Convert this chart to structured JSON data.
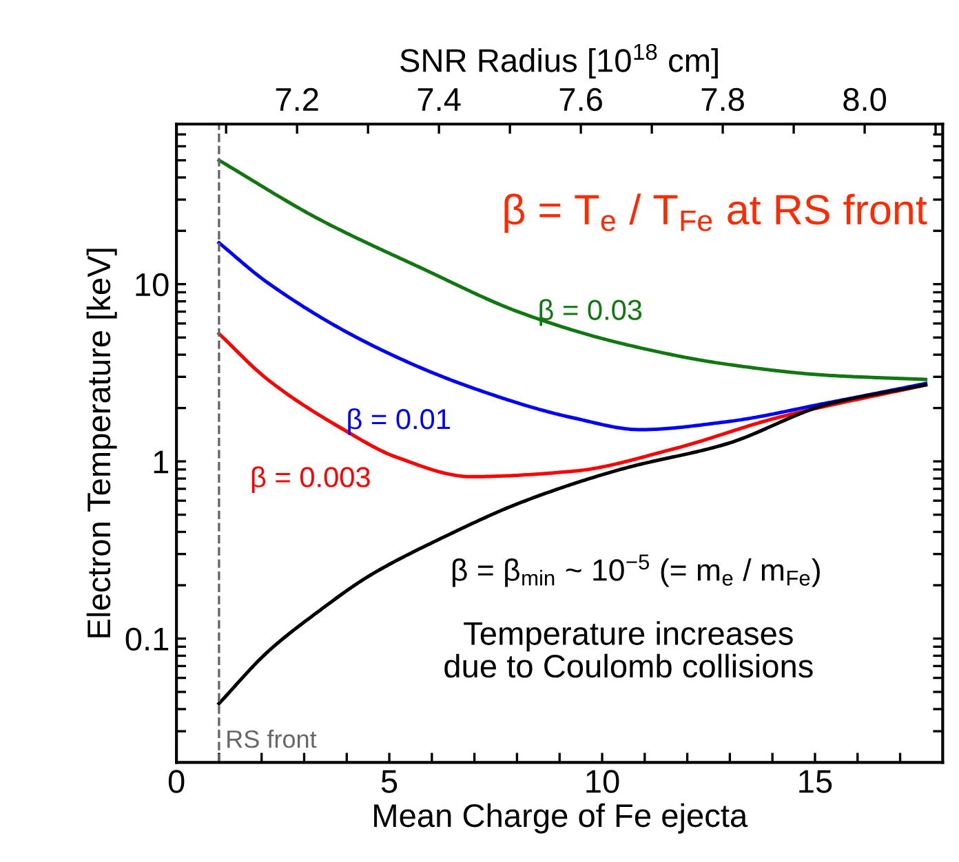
{
  "chart_data": {
    "type": "line",
    "xlabel": "Mean Charge of Fe ejecta",
    "ylabel": "Electron Temperature [keV]",
    "x2label": "SNR Radius [10$^{18}$ cm]",
    "log": "y",
    "xlim": [
      0,
      18
    ],
    "ylim": [
      0.02,
      80
    ],
    "xticks": [
      0,
      {
        "value": 1,
        "label": null
      },
      {
        "value": 2,
        "label": null
      },
      {
        "value": 3,
        "label": null
      },
      {
        "value": 4,
        "label": null
      },
      5,
      {
        "value": 6,
        "label": null
      },
      {
        "value": 7,
        "label": null
      },
      {
        "value": 8,
        "label": null
      },
      {
        "value": 9,
        "label": null
      },
      10,
      {
        "value": 11,
        "label": null
      },
      {
        "value": 12,
        "label": null
      },
      {
        "value": 13,
        "label": null
      },
      {
        "value": 14,
        "label": null
      },
      15,
      {
        "value": 16,
        "label": null
      },
      {
        "value": 17,
        "label": null
      }
    ],
    "yticks": [
      {
        "value": 0.03,
        "label": null
      },
      {
        "value": 0.04,
        "label": null
      },
      {
        "value": 0.05,
        "label": null
      },
      {
        "value": 0.06,
        "label": null
      },
      {
        "value": 0.07,
        "label": null
      },
      {
        "value": 0.08,
        "label": null
      },
      {
        "value": 0.09,
        "label": null
      },
      0.1,
      {
        "value": 0.2,
        "label": null
      },
      {
        "value": 0.3,
        "label": null
      },
      {
        "value": 0.4,
        "label": null
      },
      {
        "value": 0.5,
        "label": null
      },
      {
        "value": 0.6,
        "label": null
      },
      {
        "value": 0.7,
        "label": null
      },
      {
        "value": 0.8,
        "label": null
      },
      {
        "value": 0.9,
        "label": null
      },
      1,
      {
        "value": 2,
        "label": null
      },
      {
        "value": 3,
        "label": null
      },
      {
        "value": 4,
        "label": null
      },
      {
        "value": 5,
        "label": null
      },
      {
        "value": 6,
        "label": null
      },
      {
        "value": 7,
        "label": null
      },
      {
        "value": 8,
        "label": null
      },
      {
        "value": 9,
        "label": null
      },
      10,
      {
        "value": 20,
        "label": null
      },
      {
        "value": 30,
        "label": null
      },
      {
        "value": 40,
        "label": null
      },
      {
        "value": 50,
        "label": null
      },
      {
        "value": 60,
        "label": null
      },
      {
        "value": 70,
        "label": null
      }
    ],
    "x2lim": [
      7.03,
      8.11
    ],
    "x2ticks": [
      {
        "value": 7.1,
        "label": null
      },
      {
        "value": 7.2,
        "label": "7.2"
      },
      {
        "value": 7.3,
        "label": null
      },
      {
        "value": 7.4,
        "label": "7.4"
      },
      {
        "value": 7.5,
        "label": null
      },
      {
        "value": 7.6,
        "label": "7.6"
      },
      {
        "value": 7.7,
        "label": null
      },
      {
        "value": 7.8,
        "label": "7.8"
      },
      {
        "value": 7.9,
        "label": null
      },
      {
        "value": 8.0,
        "label": "8.0"
      },
      {
        "value": 8.1,
        "label": null
      }
    ],
    "grid": false,
    "legend": false,
    "marker": "none",
    "line_style": "solid",
    "series": [
      {
        "name": "β = 0.03",
        "color": "#117711",
        "x": [
          1,
          3.33,
          5.73,
          8.12,
          10.5,
          12.9,
          15.3,
          17.6
        ],
        "values": [
          50,
          23.4,
          12.4,
          6.85,
          4.6,
          3.54,
          3.06,
          2.9
        ]
      },
      {
        "name": "β = 0.01",
        "color": "#0000ff",
        "x": [
          1,
          2.14,
          4.53,
          6.93,
          9.32,
          10.9,
          12.9,
          15.3,
          17.6
        ],
        "values": [
          17.1,
          10.2,
          4.6,
          2.61,
          1.76,
          1.51,
          1.67,
          2.14,
          2.75
        ]
      },
      {
        "name": "β = 0.003",
        "color": "#ff0000",
        "x": [
          1,
          2.14,
          3.95,
          5.15,
          6.93,
          9.32,
          11.7,
          14.1,
          17.6
        ],
        "values": [
          5.25,
          2.9,
          1.5,
          1.06,
          0.82,
          0.88,
          1.18,
          1.76,
          2.7
        ]
      },
      {
        "name": "β = β$_{min}$ ~ 10$^{−5}$ (= m$_{e}$ / m$_{Fe}$)",
        "color": "#000000",
        "x": [
          1,
          2.14,
          3.33,
          4.53,
          6.34,
          8.12,
          10.5,
          12.9,
          15.3,
          17.6
        ],
        "values": [
          0.043,
          0.084,
          0.142,
          0.226,
          0.38,
          0.59,
          0.91,
          1.25,
          2.1,
          2.7
        ]
      }
    ],
    "ref_lines": [
      {
        "axis": "x",
        "value": 1,
        "label": "RS front",
        "color": "#666666",
        "line_style": "dashed"
      }
    ],
    "annotations": [
      "β = T$_{e}$ / T$_{Fe}$ at RS front",
      "Temperature increases\ndue to Coulomb collisions"
    ]
  }
}
